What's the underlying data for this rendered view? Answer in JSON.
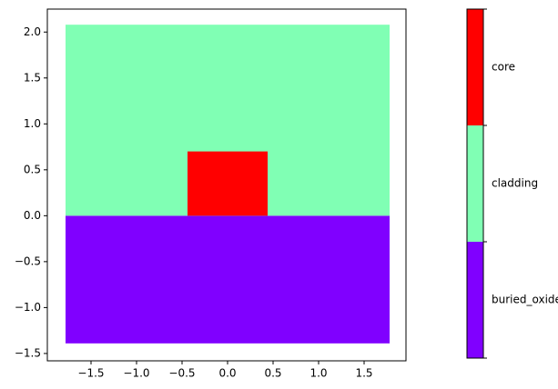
{
  "chart_data": {
    "type": "regions",
    "xlim": [
      -1.98,
      1.96
    ],
    "ylim": [
      -1.58,
      2.25
    ],
    "xticks": [
      {
        "value": -1.5,
        "label": "−1.5"
      },
      {
        "value": -1.0,
        "label": "−1.0"
      },
      {
        "value": -0.5,
        "label": "−0.5"
      },
      {
        "value": 0,
        "label": "0.0"
      },
      {
        "value": 0.5,
        "label": "0.5"
      },
      {
        "value": 1.0,
        "label": "1.0"
      },
      {
        "value": 1.5,
        "label": "1.5"
      }
    ],
    "yticks": [
      {
        "value": -1.5,
        "label": "−1.5"
      },
      {
        "value": -1.0,
        "label": "−1.0"
      },
      {
        "value": -0.5,
        "label": "−0.5"
      },
      {
        "value": 0,
        "label": "0.0"
      },
      {
        "value": 0.5,
        "label": "0.5"
      },
      {
        "value": 1.0,
        "label": "1.0"
      },
      {
        "value": 1.5,
        "label": "1.5"
      },
      {
        "value": 2.0,
        "label": "2.0"
      }
    ],
    "series": [
      {
        "name": "buried_oxide",
        "color": "#8000ff",
        "x": [
          -1.78,
          1.78
        ],
        "y": [
          -1.39,
          0
        ]
      },
      {
        "name": "cladding",
        "color": "#80ffb4",
        "x": [
          -1.78,
          1.78
        ],
        "y": [
          0,
          2.08
        ]
      },
      {
        "name": "core",
        "color": "#ff0000",
        "x": [
          -0.44,
          0.44
        ],
        "y": [
          0,
          0.7
        ]
      }
    ]
  }
}
